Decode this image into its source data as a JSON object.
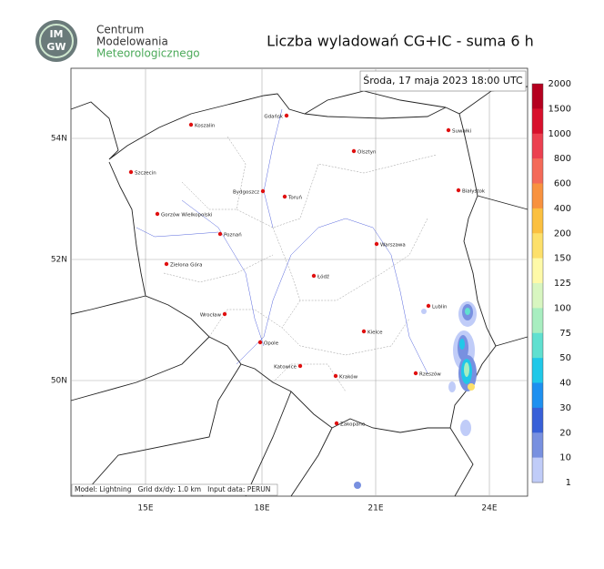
{
  "header": {
    "logo": [
      "IM",
      "GW"
    ],
    "org": [
      "Centrum",
      "Modelowania",
      "Meteorologicznego"
    ],
    "title": "Liczba wyladowań CG+IC - suma 6 h"
  },
  "date": "Środa, 17 maja 2023 18:00 UTC",
  "map": {
    "lon_labels": [
      "15E",
      "18E",
      "21E",
      "24E"
    ],
    "lat_labels": [
      "54N",
      "52N",
      "50N"
    ],
    "cities": [
      "Koszalin",
      "Gdańsk",
      "Suwałki",
      "Olsztyn",
      "Szczecin",
      "Bydgoszcz",
      "Toruń",
      "Białystok",
      "Gorzów Wielkopolski",
      "Poznań",
      "Warszawa",
      "Zielona Góra",
      "Łódź",
      "Lublin",
      "Wrocław",
      "Kielce",
      "Opole",
      "Katowice",
      "Kraków",
      "Rzeszów",
      "Zakopane"
    ],
    "footer": "Model: Lightning   Grid dx/dy: 1.0 km   Input data: PERUN"
  },
  "legend": {
    "labels": [
      2000,
      1500,
      1000,
      800,
      600,
      400,
      200,
      150,
      125,
      100,
      75,
      50,
      40,
      30,
      20,
      10,
      1
    ],
    "colors": [
      "#b5001f",
      "#d8102c",
      "#ec4050",
      "#f46a58",
      "#f8923f",
      "#fbc040",
      "#fde06a",
      "#fefaa8",
      "#d8f6c0",
      "#a8eec0",
      "#60e0d0",
      "#20c8e8",
      "#1e90f0",
      "#3860d8",
      "#7890e0",
      "#c0ccf8"
    ]
  }
}
